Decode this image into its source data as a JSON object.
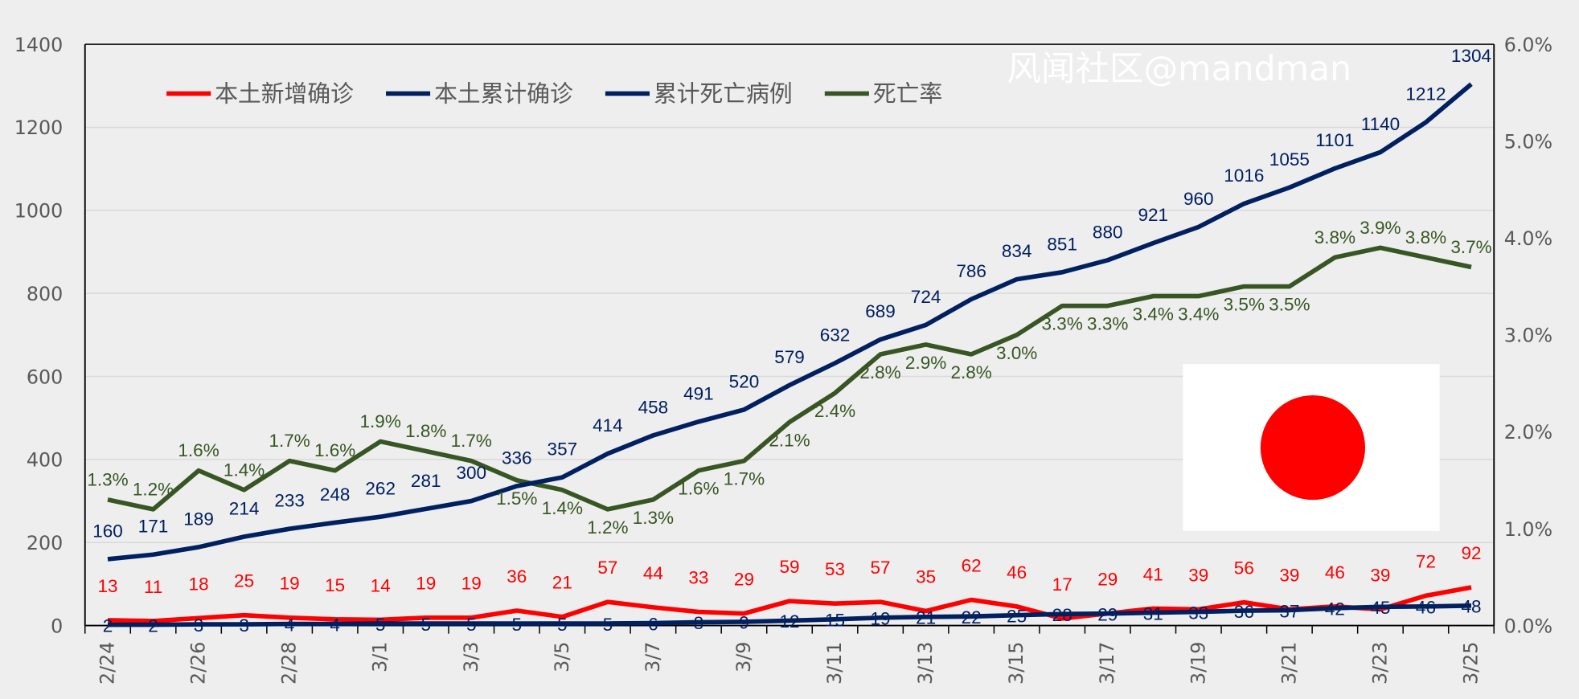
{
  "chart_data": {
    "type": "line",
    "x": [
      "2/24",
      "2/25",
      "2/26",
      "2/27",
      "2/28",
      "2/29",
      "3/1",
      "3/2",
      "3/3",
      "3/4",
      "3/5",
      "3/6",
      "3/7",
      "3/8",
      "3/9",
      "3/10",
      "3/11",
      "3/12",
      "3/13",
      "3/14",
      "3/15",
      "3/16",
      "3/17",
      "3/18",
      "3/19",
      "3/20",
      "3/21",
      "3/22",
      "3/23",
      "3/24",
      "3/25"
    ],
    "x_tick_labels": [
      "2/24",
      "2/26",
      "2/28",
      "3/1",
      "3/3",
      "3/5",
      "3/7",
      "3/9",
      "3/11",
      "3/13",
      "3/15",
      "3/17",
      "3/19",
      "3/21",
      "3/23",
      "3/25"
    ],
    "series": [
      {
        "name": "本土新增确诊",
        "axis": "left",
        "color": "#ff0000",
        "values": [
          13,
          11,
          18,
          25,
          19,
          15,
          14,
          19,
          19,
          36,
          21,
          57,
          44,
          33,
          29,
          59,
          53,
          57,
          35,
          62,
          46,
          17,
          29,
          41,
          39,
          56,
          39,
          46,
          39,
          72,
          92
        ]
      },
      {
        "name": "本土累计确诊",
        "axis": "left",
        "color": "#002060",
        "values": [
          160,
          171,
          189,
          214,
          233,
          248,
          262,
          281,
          300,
          336,
          357,
          414,
          458,
          491,
          520,
          579,
          632,
          689,
          724,
          786,
          834,
          851,
          880,
          921,
          960,
          1016,
          1055,
          1101,
          1140,
          1212,
          1304
        ]
      },
      {
        "name": "累计死亡病例",
        "axis": "left",
        "color": "#002060",
        "values": [
          2,
          2,
          3,
          3,
          4,
          4,
          5,
          5,
          5,
          5,
          5,
          5,
          6,
          8,
          9,
          12,
          15,
          19,
          21,
          22,
          25,
          28,
          29,
          31,
          33,
          36,
          37,
          42,
          45,
          46,
          48
        ]
      },
      {
        "name": "死亡率",
        "axis": "right",
        "color": "#375623",
        "values": [
          1.3,
          1.2,
          1.6,
          1.4,
          1.7,
          1.6,
          1.9,
          1.8,
          1.7,
          1.5,
          1.4,
          1.2,
          1.3,
          1.6,
          1.7,
          2.1,
          2.4,
          2.8,
          2.9,
          2.8,
          3.0,
          3.3,
          3.3,
          3.4,
          3.4,
          3.5,
          3.5,
          3.8,
          3.9,
          3.8,
          3.7
        ],
        "labels": [
          "1.3%",
          "1.2%",
          "1.6%",
          "1.4%",
          "1.7%",
          "1.6%",
          "1.9%",
          "1.8%",
          "1.7%",
          "1.5%",
          "1.4%",
          "1.2%",
          "1.3%",
          "1.6%",
          "1.7%",
          "2.1%",
          "2.4%",
          "2.8%",
          "2.9%",
          "2.8%",
          "3.0%",
          "3.3%",
          "3.3%",
          "3.4%",
          "3.4%",
          "3.5%",
          "3.5%",
          "3.8%",
          "3.9%",
          "3.8%",
          "3.7%"
        ]
      }
    ],
    "ylim_left": [
      0,
      1400
    ],
    "yticks_left": [
      "0",
      "200",
      "400",
      "600",
      "800",
      "1000",
      "1200",
      "1400"
    ],
    "ylim_right": [
      0,
      6
    ],
    "yticks_right": [
      "0.0%",
      "1.0%",
      "2.0%",
      "3.0%",
      "4.0%",
      "5.0%",
      "6.0%"
    ],
    "grid": true,
    "legend": "top-left"
  },
  "watermark": "风闻社区@mandman"
}
